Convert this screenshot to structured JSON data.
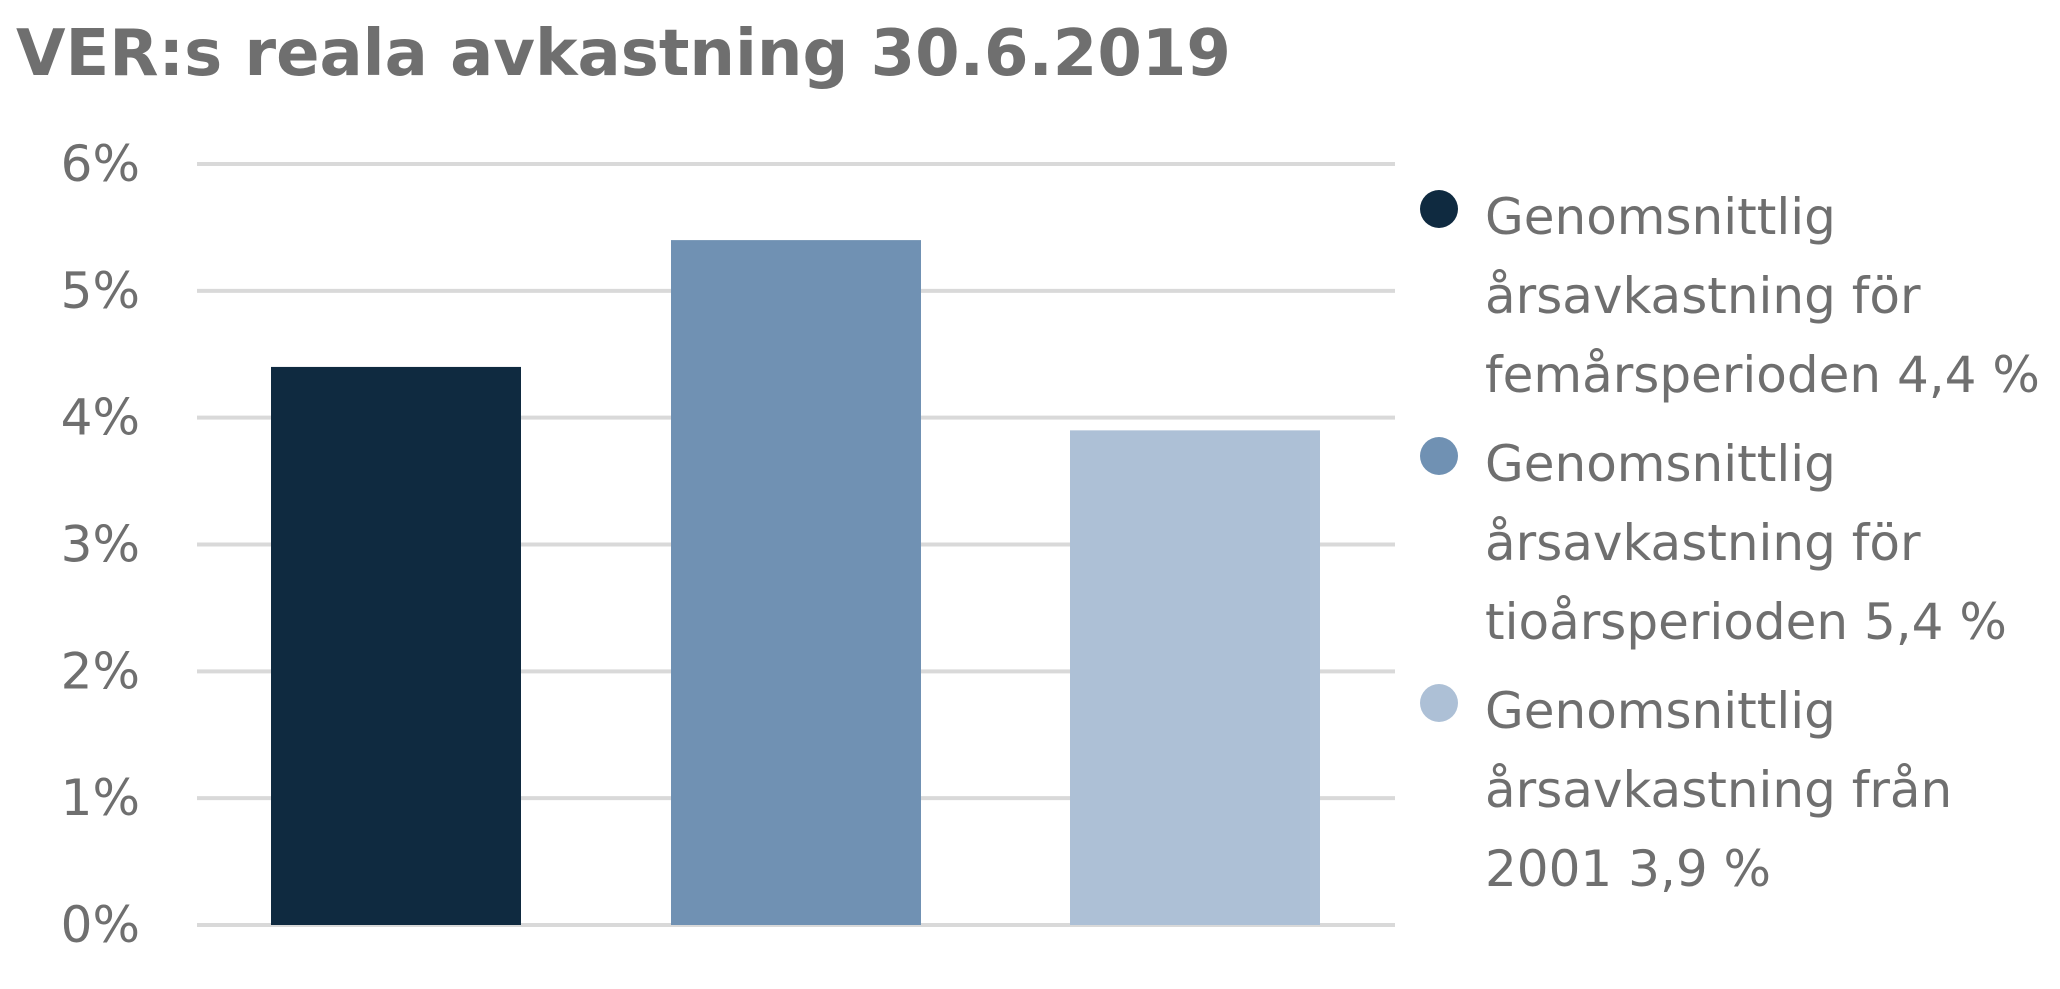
{
  "chart_data": {
    "type": "bar",
    "title": "VER:s reala avkastning 30.6.2019",
    "xlabel": "",
    "ylabel": "",
    "ylim": [
      0,
      6
    ],
    "y_ticks": [
      0,
      1,
      2,
      3,
      4,
      5,
      6
    ],
    "y_tick_labels": [
      "0%",
      "1%",
      "2%",
      "3%",
      "4%",
      "5%",
      "6%"
    ],
    "grid": true,
    "legend_position": "right",
    "series": [
      {
        "name": "Genomsnittlig årsavkastning för femårsperioden 4,4 %",
        "values": [
          4.4
        ],
        "color": "#0f2a40"
      },
      {
        "name": "Genomsnittlig årsavkastning för tioårsperioden 5,4 %",
        "values": [
          5.4
        ],
        "color": "#7091b3"
      },
      {
        "name": "Genomsnittlig årsavkastning från 2001 3,9 %",
        "values": [
          3.9
        ],
        "color": "#adc0d6"
      }
    ],
    "colors": {
      "grid": "#d9d9d9",
      "text": "#6f6f6f"
    }
  }
}
